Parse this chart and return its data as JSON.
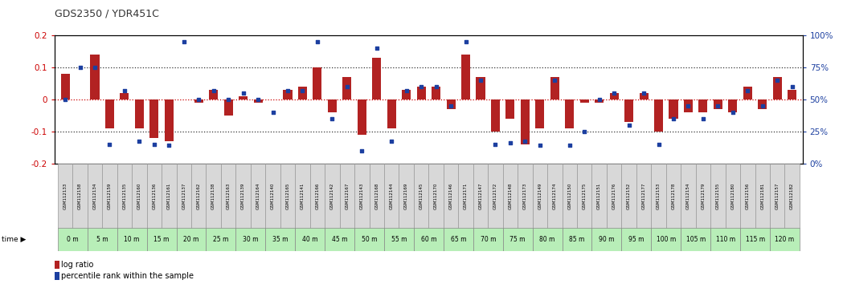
{
  "title": "GDS2350 / YDR451C",
  "gsm_labels": [
    "GSM112133",
    "GSM112158",
    "GSM112134",
    "GSM112159",
    "GSM112135",
    "GSM112160",
    "GSM112136",
    "GSM112161",
    "GSM112137",
    "GSM112162",
    "GSM112138",
    "GSM112163",
    "GSM112139",
    "GSM112164",
    "GSM112140",
    "GSM112165",
    "GSM112141",
    "GSM112166",
    "GSM112142",
    "GSM112167",
    "GSM112143",
    "GSM112168",
    "GSM112144",
    "GSM112169",
    "GSM112145",
    "GSM112170",
    "GSM112146",
    "GSM112171",
    "GSM112147",
    "GSM112172",
    "GSM112148",
    "GSM112173",
    "GSM112149",
    "GSM112174",
    "GSM112150",
    "GSM112175",
    "GSM112151",
    "GSM112176",
    "GSM112152",
    "GSM112177",
    "GSM112153",
    "GSM112178",
    "GSM112154",
    "GSM112179",
    "GSM112155",
    "GSM112180",
    "GSM112156",
    "GSM112181",
    "GSM112157",
    "GSM112182"
  ],
  "time_labels": [
    "0 m",
    "5 m",
    "10 m",
    "15 m",
    "20 m",
    "25 m",
    "30 m",
    "35 m",
    "40 m",
    "45 m",
    "50 m",
    "55 m",
    "60 m",
    "65 m",
    "70 m",
    "75 m",
    "80 m",
    "85 m",
    "90 m",
    "95 m",
    "100 m",
    "105 m",
    "110 m",
    "115 m",
    "120 m"
  ],
  "log_ratio": [
    0.08,
    0.0,
    0.14,
    -0.09,
    0.02,
    -0.09,
    -0.12,
    -0.13,
    0.0,
    -0.01,
    0.03,
    -0.05,
    0.01,
    -0.01,
    0.0,
    0.03,
    0.04,
    0.1,
    -0.04,
    0.07,
    -0.11,
    0.13,
    -0.09,
    0.03,
    0.04,
    0.04,
    -0.03,
    0.14,
    0.07,
    -0.1,
    -0.06,
    -0.14,
    -0.09,
    0.07,
    -0.09,
    -0.01,
    -0.01,
    0.02,
    -0.07,
    0.02,
    -0.1,
    -0.06,
    -0.04,
    -0.04,
    -0.03,
    -0.04,
    0.04,
    -0.03,
    0.07,
    0.03
  ],
  "percentile": [
    50,
    75,
    75,
    15,
    57,
    17,
    15,
    14,
    95,
    50,
    57,
    50,
    55,
    50,
    40,
    57,
    57,
    95,
    35,
    60,
    10,
    90,
    17,
    57,
    60,
    60,
    45,
    95,
    65,
    15,
    16,
    17,
    14,
    65,
    14,
    25,
    50,
    55,
    30,
    55,
    15,
    35,
    45,
    35,
    45,
    40,
    57,
    45,
    65,
    60
  ],
  "ylim": [
    -0.2,
    0.2
  ],
  "y2lim": [
    0,
    100
  ],
  "bar_color": "#B22222",
  "dot_color": "#1C3FA0",
  "gsm_bg_color": "#D8D8D8",
  "time_bg_color_light": "#C8F0C8",
  "time_bg_color_dark": "#90EE90",
  "zeroline_color": "#CC0000",
  "dotline_color": "#333333",
  "title_color": "#333333",
  "left_ytick_color": "#CC0000",
  "right_ytick_color": "#1C3FA0"
}
